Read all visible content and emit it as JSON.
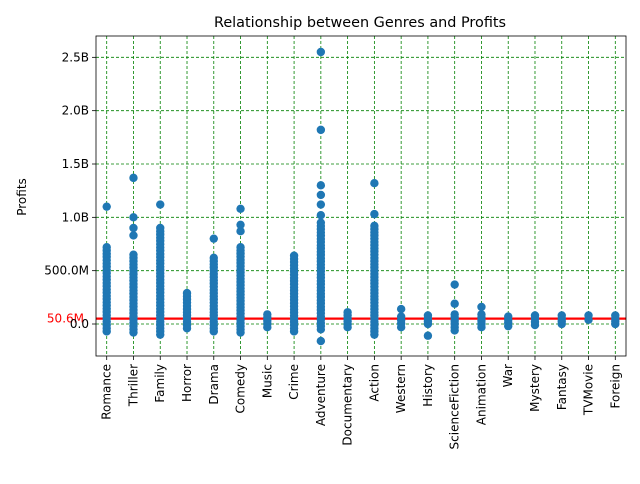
{
  "chart_data": {
    "type": "scatter",
    "title": "Relationship between Genres and Profits",
    "xlabel": "",
    "ylabel": "Profits",
    "categories": [
      "Romance",
      "Thriller",
      "Family",
      "Horror",
      "Drama",
      "Comedy",
      "Music",
      "Crime",
      "Adventure",
      "Documentary",
      "Action",
      "Western",
      "History",
      "ScienceFiction",
      "Animation",
      "War",
      "Mystery",
      "Fantasy",
      "TVMovie",
      "Foreign"
    ],
    "ylim": [
      -300000000,
      2700000000
    ],
    "yticks": [
      0,
      500000000,
      1000000000,
      1500000000,
      2000000000,
      2500000000
    ],
    "ytick_labels": [
      "0.0",
      "500.0M",
      "1.0B",
      "1.5B",
      "2.0B",
      "2.5B"
    ],
    "grid": true,
    "grid_color": "#008000",
    "marker_color": "#1f77b4",
    "reference_line": {
      "value": 50600000,
      "label": "50.6M",
      "color": "#ff0000"
    },
    "ranges": [
      {
        "genre": "Romance",
        "min": -70000000,
        "max": 720000000,
        "outliers": [
          1100000000
        ]
      },
      {
        "genre": "Thriller",
        "min": -80000000,
        "max": 650000000,
        "outliers": [
          830000000,
          900000000,
          1000000000,
          1370000000
        ]
      },
      {
        "genre": "Family",
        "min": -100000000,
        "max": 900000000,
        "outliers": [
          1120000000
        ]
      },
      {
        "genre": "Horror",
        "min": -40000000,
        "max": 290000000,
        "outliers": []
      },
      {
        "genre": "Drama",
        "min": -70000000,
        "max": 620000000,
        "outliers": [
          800000000
        ]
      },
      {
        "genre": "Comedy",
        "min": -80000000,
        "max": 720000000,
        "outliers": [
          870000000,
          930000000,
          1080000000
        ]
      },
      {
        "genre": "Music",
        "min": -30000000,
        "max": 90000000,
        "outliers": []
      },
      {
        "genre": "Crime",
        "min": -70000000,
        "max": 640000000,
        "outliers": []
      },
      {
        "genre": "Adventure",
        "min": -50000000,
        "max": 950000000,
        "outliers": [
          -160000000,
          1020000000,
          1120000000,
          1210000000,
          1300000000,
          1820000000,
          2550000000
        ]
      },
      {
        "genre": "Documentary",
        "min": -30000000,
        "max": 110000000,
        "outliers": []
      },
      {
        "genre": "Action",
        "min": -100000000,
        "max": 920000000,
        "outliers": [
          1030000000,
          1320000000
        ]
      },
      {
        "genre": "Western",
        "min": -30000000,
        "max": 70000000,
        "outliers": [
          140000000
        ]
      },
      {
        "genre": "History",
        "min": 0,
        "max": 80000000,
        "outliers": [
          -110000000
        ]
      },
      {
        "genre": "ScienceFiction",
        "min": -60000000,
        "max": 90000000,
        "outliers": [
          190000000,
          370000000
        ]
      },
      {
        "genre": "Animation",
        "min": -30000000,
        "max": 90000000,
        "outliers": [
          160000000
        ]
      },
      {
        "genre": "War",
        "min": -20000000,
        "max": 70000000,
        "outliers": []
      },
      {
        "genre": "Mystery",
        "min": -10000000,
        "max": 80000000,
        "outliers": []
      },
      {
        "genre": "Fantasy",
        "min": 0,
        "max": 80000000,
        "outliers": []
      },
      {
        "genre": "TVMovie",
        "min": 40000000,
        "max": 80000000,
        "outliers": []
      },
      {
        "genre": "Foreign",
        "min": 0,
        "max": 80000000,
        "outliers": []
      }
    ]
  }
}
